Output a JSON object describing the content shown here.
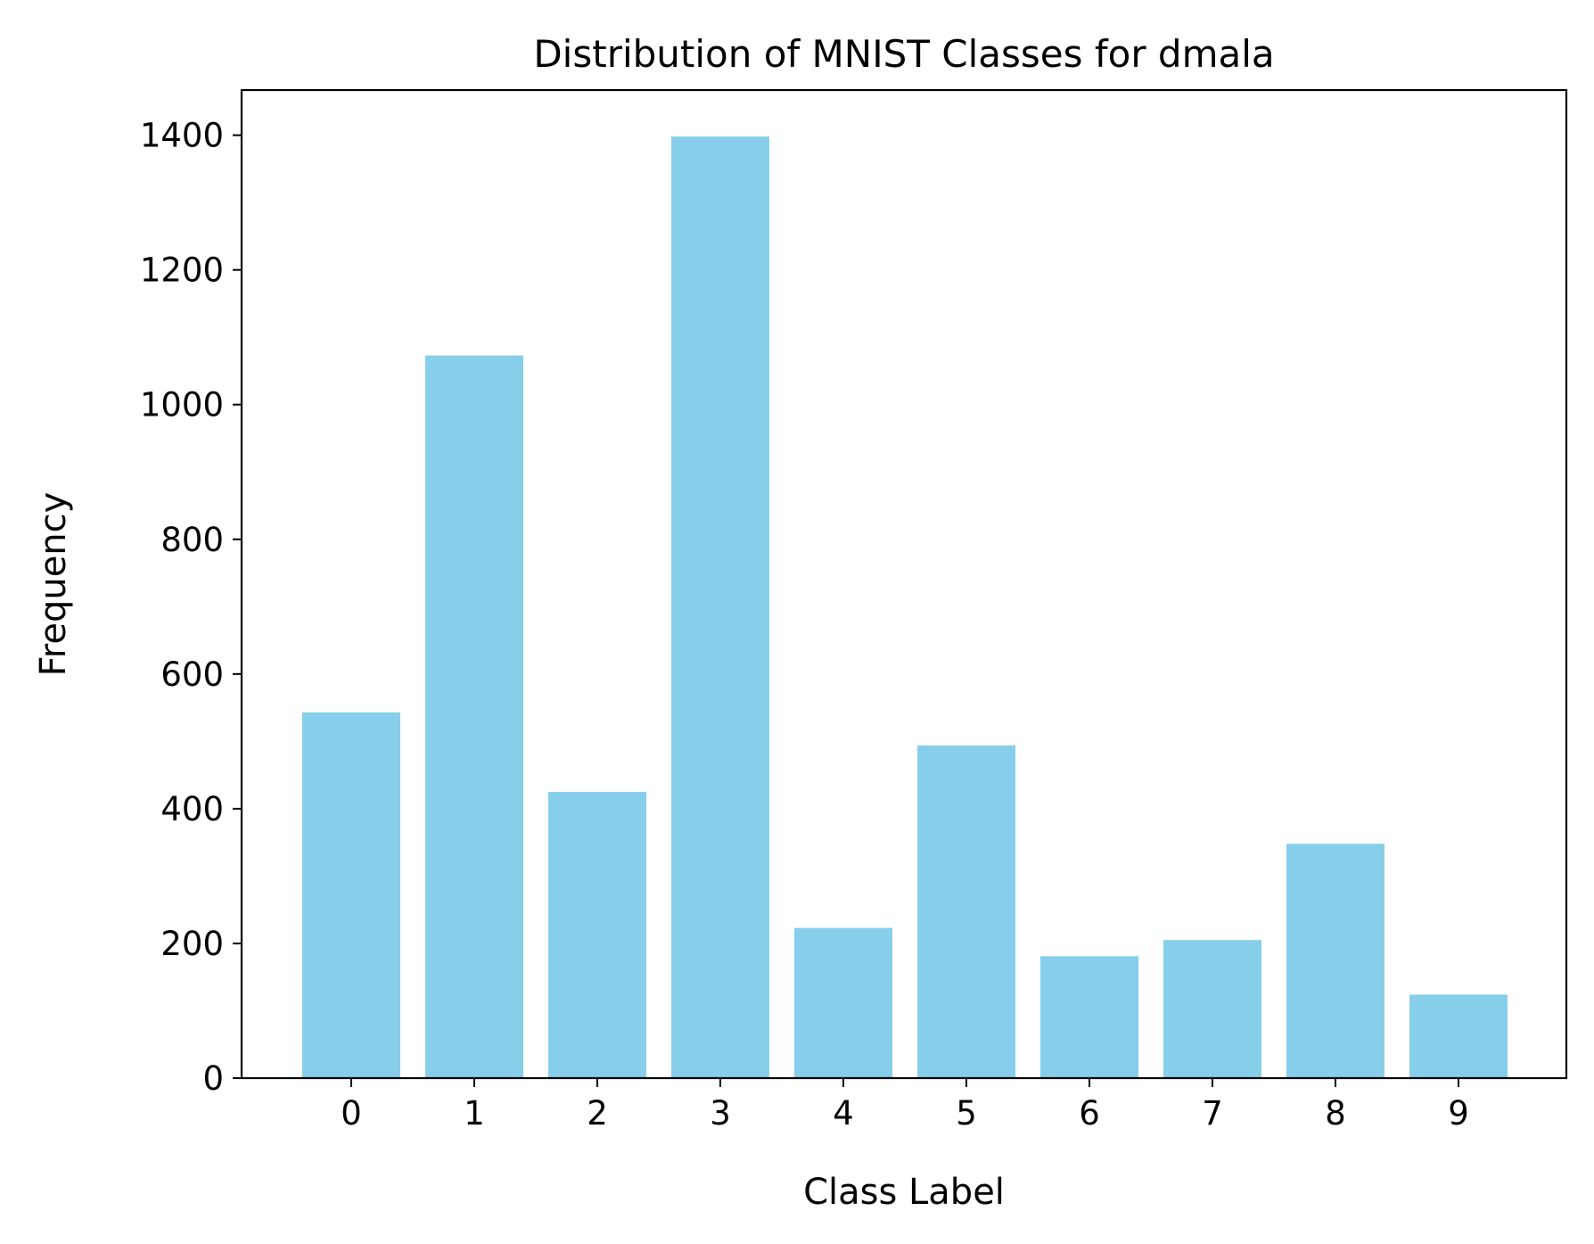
{
  "chart_data": {
    "type": "bar",
    "title": "Distribution of MNIST Classes for dmala",
    "xlabel": "Class Label",
    "ylabel": "Frequency",
    "categories": [
      "0",
      "1",
      "2",
      "3",
      "4",
      "5",
      "6",
      "7",
      "8",
      "9"
    ],
    "values": [
      543,
      1073,
      425,
      1398,
      223,
      494,
      181,
      205,
      348,
      124
    ],
    "ylim": [
      0,
      1467
    ],
    "yticks": [
      0,
      200,
      400,
      600,
      800,
      1000,
      1200,
      1400
    ],
    "ytick_labels": [
      "0",
      "200",
      "400",
      "600",
      "800",
      "1000",
      "1200",
      "1400"
    ],
    "bar_color": "#87CEEB",
    "grid": false,
    "legend": "none"
  }
}
